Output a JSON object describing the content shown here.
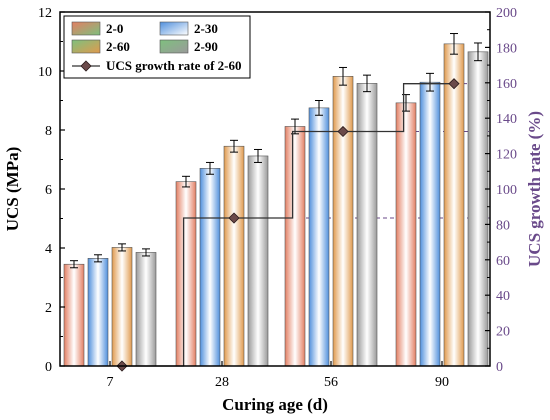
{
  "chart_data": {
    "type": "bar",
    "title": "",
    "xlabel": "Curing age (d)",
    "ylabel": "UCS (MPa)",
    "y2label": "UCS growth rate (%)",
    "categories": [
      "7",
      "28",
      "56",
      "90"
    ],
    "ylim": [
      0,
      12
    ],
    "y2lim": [
      0,
      200
    ],
    "yticks": [
      0,
      2,
      4,
      6,
      8,
      10,
      12
    ],
    "y2ticks": [
      0,
      20,
      40,
      60,
      80,
      100,
      120,
      140,
      160,
      180,
      200
    ],
    "series": [
      {
        "name": "2-0",
        "values": [
          3.45,
          6.25,
          8.12,
          8.92
        ],
        "errors": [
          0.12,
          0.18,
          0.25,
          0.28
        ],
        "color": "#e8a07a"
      },
      {
        "name": "2-30",
        "values": [
          3.65,
          6.7,
          8.75,
          9.62
        ],
        "errors": [
          0.12,
          0.2,
          0.25,
          0.3
        ],
        "color": "#6fa8e0"
      },
      {
        "name": "2-60",
        "values": [
          4.02,
          7.45,
          9.82,
          10.92
        ],
        "errors": [
          0.12,
          0.2,
          0.3,
          0.35
        ],
        "color": "#e8b06a"
      },
      {
        "name": "2-90",
        "values": [
          3.85,
          7.12,
          9.58,
          10.65
        ],
        "errors": [
          0.12,
          0.22,
          0.28,
          0.3
        ],
        "color": "#b0b0b0"
      }
    ],
    "growth_series": {
      "name": "UCS growth rate of 2-60",
      "values": [
        0,
        83.6,
        132.5,
        159.5
      ],
      "reference_lines": [
        0,
        83.6,
        132.5,
        159.5
      ]
    },
    "legend_position": "top-left"
  }
}
